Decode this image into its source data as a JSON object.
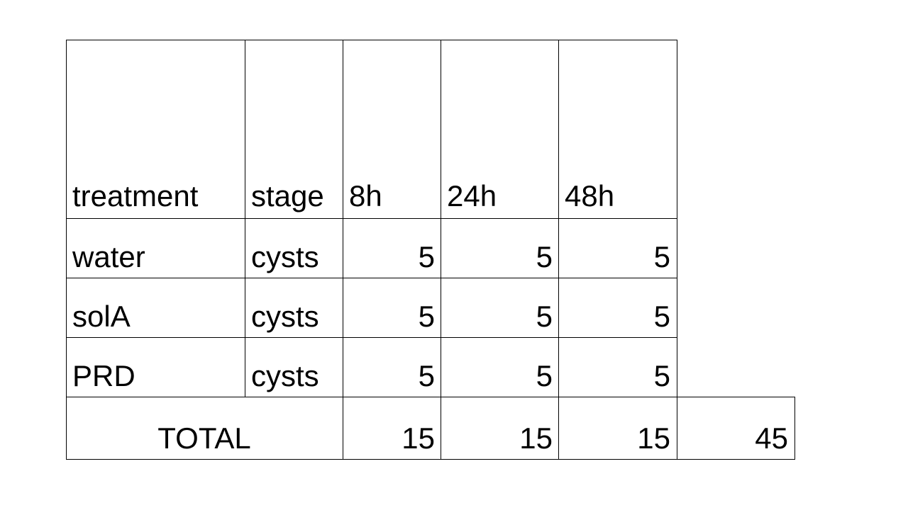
{
  "table": {
    "headers": [
      "treatment",
      "stage",
      "8h",
      "24h",
      "48h"
    ],
    "rows": [
      [
        "water",
        "cysts",
        "5",
        "5",
        "5"
      ],
      [
        "solA",
        "cysts",
        "5",
        "5",
        "5"
      ],
      [
        "PRD",
        "cysts",
        "5",
        "5",
        "5"
      ]
    ],
    "total": {
      "label": "TOTAL",
      "values": [
        "15",
        "15",
        "15",
        "45"
      ]
    }
  }
}
